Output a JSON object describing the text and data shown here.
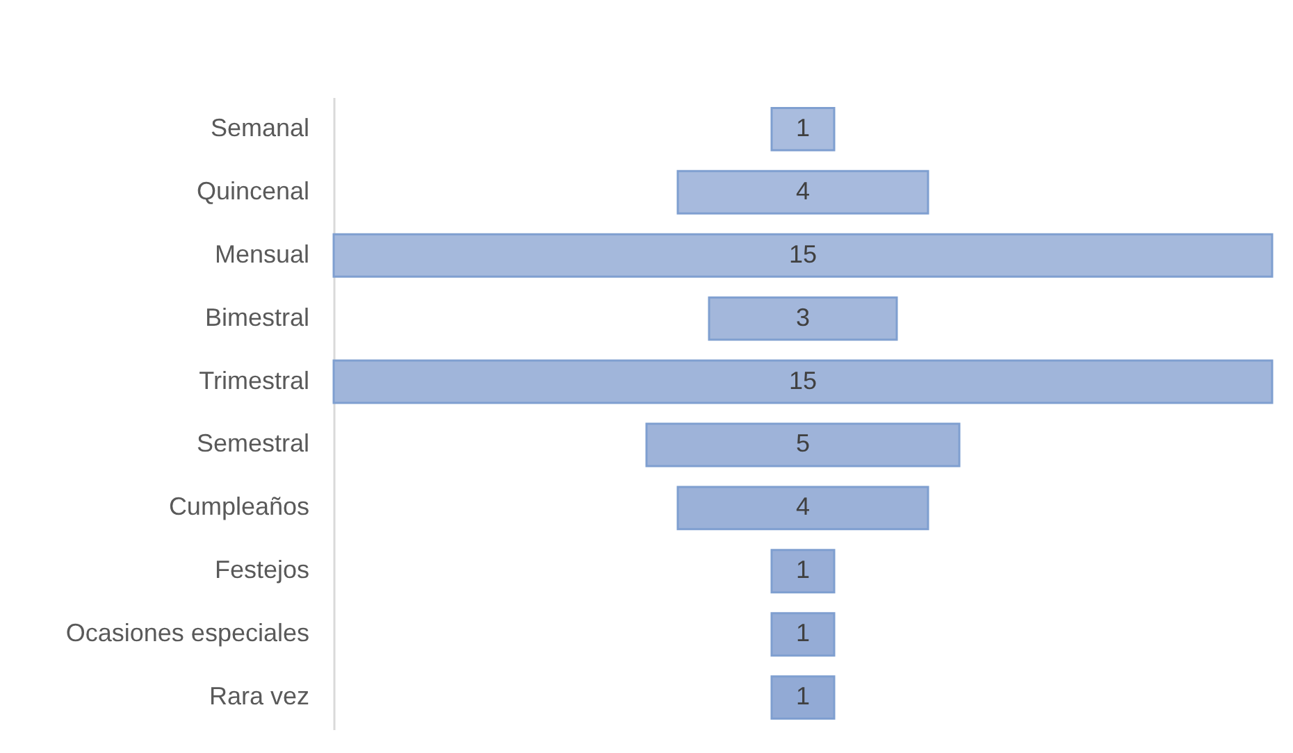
{
  "chart_data": {
    "type": "other",
    "categories": [
      "Semanal",
      "Quincenal",
      "Mensual",
      "Bimestral",
      "Trimestral",
      "Semestral",
      "Cumpleaños",
      "Festejos",
      "Ocasiones especiales",
      "Rara vez"
    ],
    "values": [
      1,
      4,
      15,
      3,
      15,
      5,
      4,
      1,
      1,
      1
    ],
    "colors": [
      "#a9bcde",
      "#a7badd",
      "#a5b9dc",
      "#a3b7db",
      "#a0b5da",
      "#9eb3d9",
      "#9bb1d8",
      "#98aed7",
      "#95acd6",
      "#92aad5"
    ],
    "data_labels": true
  }
}
